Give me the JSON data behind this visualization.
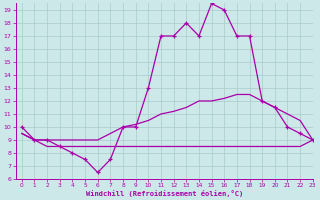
{
  "x": [
    0,
    1,
    2,
    3,
    4,
    5,
    6,
    7,
    8,
    9,
    10,
    11,
    12,
    13,
    14,
    15,
    16,
    17,
    18,
    19,
    20,
    21,
    22,
    23
  ],
  "line1_y": [
    10,
    9,
    9,
    8.5,
    8,
    7.5,
    6.5,
    7.5,
    10,
    10,
    13,
    17,
    17,
    18,
    17,
    19.5,
    19,
    17,
    17,
    12,
    11.5,
    10,
    9.5,
    9
  ],
  "line2_y": [
    9.5,
    9.0,
    9.0,
    9.0,
    9.0,
    9.0,
    9.0,
    9.5,
    10.0,
    10.2,
    10.5,
    11.0,
    11.2,
    11.5,
    12.0,
    12.0,
    12.2,
    12.5,
    12.5,
    12.0,
    11.5,
    11.0,
    10.5,
    9.0
  ],
  "line3_y": [
    9.5,
    9.0,
    8.5,
    8.5,
    8.5,
    8.5,
    8.5,
    8.5,
    8.5,
    8.5,
    8.5,
    8.5,
    8.5,
    8.5,
    8.5,
    8.5,
    8.5,
    8.5,
    8.5,
    8.5,
    8.5,
    8.5,
    8.5,
    9.0
  ],
  "line_color": "#aa00aa",
  "bg_color": "#cce8e8",
  "grid_color": "#aacccc",
  "xlabel": "Windchill (Refroidissement éolien,°C)",
  "ylim": [
    6,
    19.5
  ],
  "xlim": [
    -0.5,
    23
  ],
  "yticks": [
    6,
    7,
    8,
    9,
    10,
    11,
    12,
    13,
    14,
    15,
    16,
    17,
    18,
    19
  ],
  "xticks": [
    0,
    1,
    2,
    3,
    4,
    5,
    6,
    7,
    8,
    9,
    10,
    11,
    12,
    13,
    14,
    15,
    16,
    17,
    18,
    19,
    20,
    21,
    22,
    23
  ]
}
